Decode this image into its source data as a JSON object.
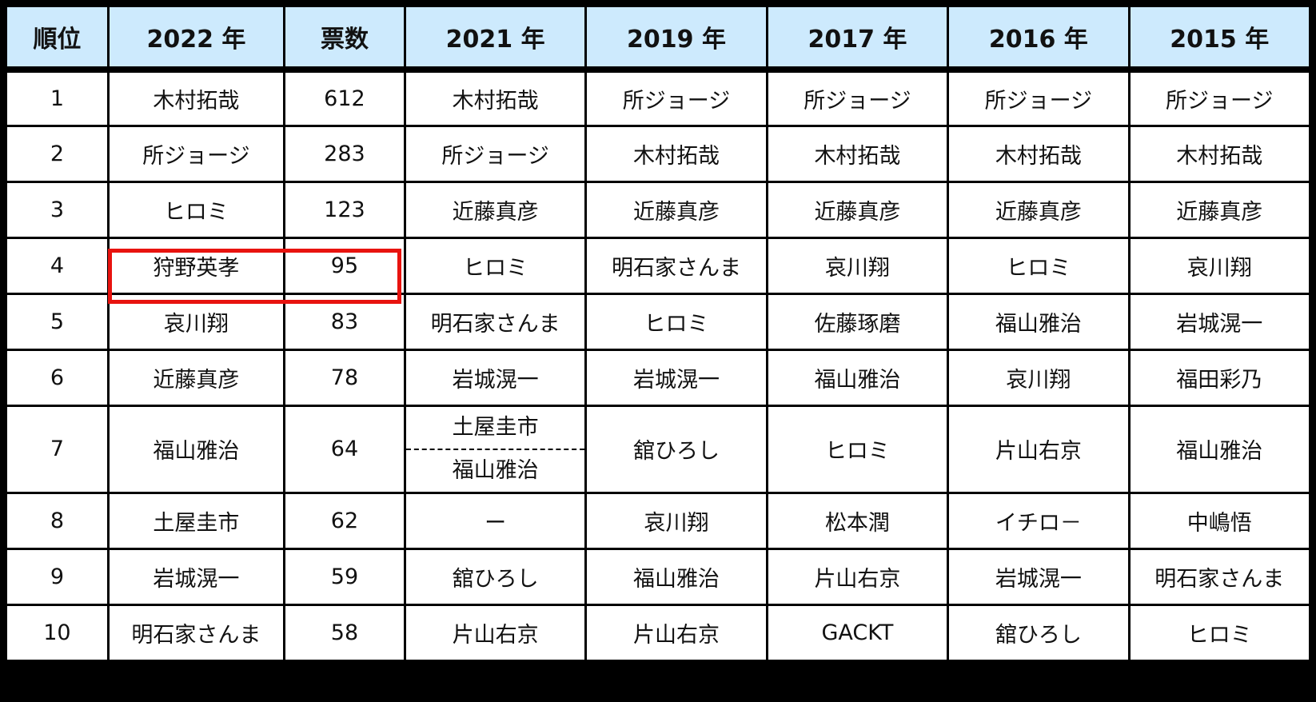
{
  "headers": {
    "rank": "順位",
    "y2022": "2022 年",
    "votes": "票数",
    "y2021": "2021 年",
    "y2019": "2019 年",
    "y2017": "2017 年",
    "y2016": "2016 年",
    "y2015": "2015 年"
  },
  "rows": [
    {
      "rank": "1",
      "y2022": "木村拓哉",
      "votes": "612",
      "y2021": "木村拓哉",
      "y2019": "所ジョージ",
      "y2017": "所ジョージ",
      "y2016": "所ジョージ",
      "y2015": "所ジョージ"
    },
    {
      "rank": "2",
      "y2022": "所ジョージ",
      "votes": "283",
      "y2021": "所ジョージ",
      "y2019": "木村拓哉",
      "y2017": "木村拓哉",
      "y2016": "木村拓哉",
      "y2015": "木村拓哉"
    },
    {
      "rank": "3",
      "y2022": "ヒロミ",
      "votes": "123",
      "y2021": "近藤真彦",
      "y2019": "近藤真彦",
      "y2017": "近藤真彦",
      "y2016": "近藤真彦",
      "y2015": "近藤真彦"
    },
    {
      "rank": "4",
      "y2022": "狩野英孝",
      "votes": "95",
      "y2021": "ヒロミ",
      "y2019": "明石家さんま",
      "y2017": "哀川翔",
      "y2016": "ヒロミ",
      "y2015": "哀川翔"
    },
    {
      "rank": "5",
      "y2022": "哀川翔",
      "votes": "83",
      "y2021": "明石家さんま",
      "y2019": "ヒロミ",
      "y2017": "佐藤琢磨",
      "y2016": "福山雅治",
      "y2015": "岩城滉一"
    },
    {
      "rank": "6",
      "y2022": "近藤真彦",
      "votes": "78",
      "y2021": "岩城滉一",
      "y2019": "岩城滉一",
      "y2017": "福山雅治",
      "y2016": "哀川翔",
      "y2015": "福田彩乃"
    },
    {
      "rank": "7",
      "y2022": "福山雅治",
      "votes": "64",
      "y2021_a": "土屋圭市",
      "y2021_b": "福山雅治",
      "y2019": "舘ひろし",
      "y2017": "ヒロミ",
      "y2016": "片山右京",
      "y2015": "福山雅治"
    },
    {
      "rank": "8",
      "y2022": "土屋圭市",
      "votes": "62",
      "y2021": "ー",
      "y2019": "哀川翔",
      "y2017": "松本潤",
      "y2016": "イチロ－",
      "y2015": "中嶋悟"
    },
    {
      "rank": "9",
      "y2022": "岩城滉一",
      "votes": "59",
      "y2021": "舘ひろし",
      "y2019": "福山雅治",
      "y2017": "片山右京",
      "y2016": "岩城滉一",
      "y2015": "明石家さんま"
    },
    {
      "rank": "10",
      "y2022": "明石家さんま",
      "votes": "58",
      "y2021": "片山右京",
      "y2019": "片山右京",
      "y2017": "GACKT",
      "y2016": "舘ひろし",
      "y2015": "ヒロミ"
    }
  ],
  "colors": {
    "header_bg": "#cdeafd",
    "green_cell": "#ebf1de",
    "pink_cell": "#f2dcdb",
    "rank_cell": "#f2f2f2",
    "highlight_border": "#e8130f"
  }
}
